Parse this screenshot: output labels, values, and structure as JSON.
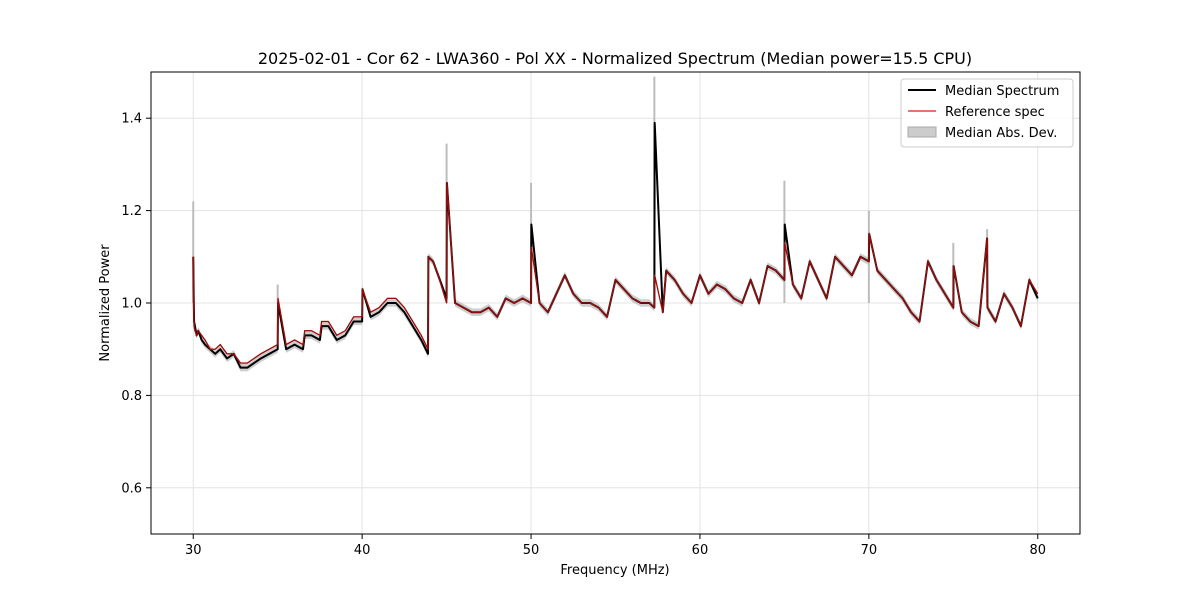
{
  "chart_data": {
    "type": "line",
    "title": "2025-02-01 - Cor 62 - LWA360 - Pol XX - Normalized Spectrum (Median power=15.5 CPU)",
    "xlabel": "Frequency (MHz)",
    "ylabel": "Normalized Power",
    "xlim": [
      27.5,
      82.5
    ],
    "ylim": [
      0.5,
      1.5
    ],
    "xticks": [
      30,
      40,
      50,
      60,
      70,
      80
    ],
    "yticks": [
      0.6,
      0.8,
      1.0,
      1.2,
      1.4
    ],
    "xtick_labels": [
      "30",
      "40",
      "50",
      "60",
      "70",
      "80"
    ],
    "ytick_labels": [
      "0.6",
      "0.8",
      "1.0",
      "1.2",
      "1.4"
    ],
    "grid": true,
    "legend_position": "top-right",
    "legend": [
      "Median Spectrum",
      "Reference spec",
      "Median Abs. Dev."
    ],
    "colors": {
      "median": "#000000",
      "reference": "#e8423b",
      "mad": "#bdbdbd",
      "overlap": "#8b0000"
    },
    "series": [
      {
        "name": "Median Spectrum",
        "x": [
          30.0,
          30.05,
          30.1,
          30.2,
          30.3,
          30.5,
          30.7,
          31.0,
          31.3,
          31.6,
          32.0,
          32.4,
          32.8,
          33.2,
          33.6,
          34.0,
          34.5,
          35.0,
          35.02,
          35.5,
          36.0,
          36.5,
          36.6,
          37.0,
          37.5,
          37.6,
          38.0,
          38.5,
          39.0,
          39.5,
          40.0,
          40.02,
          40.5,
          41.0,
          41.5,
          42.0,
          42.5,
          43.0,
          43.5,
          43.9,
          43.92,
          44.2,
          44.5,
          45.0,
          45.02,
          45.5,
          46.0,
          46.5,
          47.0,
          47.5,
          48.0,
          48.5,
          49.0,
          49.5,
          50.0,
          50.02,
          50.5,
          51.0,
          51.5,
          52.0,
          52.5,
          53.0,
          53.5,
          54.0,
          54.5,
          55.0,
          55.5,
          56.0,
          56.5,
          57.0,
          57.3,
          57.32,
          57.8,
          58.0,
          58.5,
          59.0,
          59.5,
          60.0,
          60.5,
          61.0,
          61.5,
          62.0,
          62.5,
          63.0,
          63.5,
          64.0,
          64.5,
          65.0,
          65.02,
          65.5,
          66.0,
          66.5,
          67.0,
          67.5,
          68.0,
          68.5,
          69.0,
          69.5,
          70.0,
          70.02,
          70.5,
          71.0,
          71.5,
          72.0,
          72.5,
          73.0,
          73.5,
          74.0,
          74.5,
          75.0,
          75.02,
          75.5,
          76.0,
          76.5,
          77.0,
          77.02,
          77.5,
          78.0,
          78.5,
          79.0,
          79.5,
          80.0
        ],
        "y": [
          1.1,
          0.96,
          0.95,
          0.93,
          0.94,
          0.92,
          0.91,
          0.9,
          0.89,
          0.9,
          0.88,
          0.89,
          0.86,
          0.86,
          0.87,
          0.88,
          0.89,
          0.9,
          1.0,
          0.9,
          0.91,
          0.9,
          0.93,
          0.93,
          0.92,
          0.95,
          0.95,
          0.92,
          0.93,
          0.96,
          0.96,
          1.03,
          0.97,
          0.98,
          1.0,
          1.0,
          0.98,
          0.95,
          0.92,
          0.89,
          1.1,
          1.09,
          1.06,
          1.01,
          1.26,
          1.0,
          0.99,
          0.98,
          0.98,
          0.99,
          0.97,
          1.01,
          1.0,
          1.01,
          1.0,
          1.17,
          1.0,
          0.98,
          1.02,
          1.06,
          1.02,
          1.0,
          1.0,
          0.99,
          0.97,
          1.05,
          1.03,
          1.01,
          1.0,
          1.0,
          0.99,
          1.39,
          0.98,
          1.07,
          1.05,
          1.02,
          1.0,
          1.06,
          1.02,
          1.04,
          1.03,
          1.01,
          1.0,
          1.05,
          1.0,
          1.08,
          1.07,
          1.05,
          1.17,
          1.04,
          1.01,
          1.09,
          1.05,
          1.01,
          1.1,
          1.08,
          1.06,
          1.1,
          1.09,
          1.15,
          1.07,
          1.05,
          1.03,
          1.01,
          0.98,
          0.96,
          1.09,
          1.05,
          1.02,
          0.99,
          1.08,
          0.98,
          0.96,
          0.95,
          1.14,
          0.99,
          0.96,
          1.02,
          0.99,
          0.95,
          1.05,
          1.01
        ]
      },
      {
        "name": "Reference spec",
        "x": [
          30.0,
          30.05,
          30.1,
          30.2,
          30.3,
          30.5,
          30.7,
          31.0,
          31.3,
          31.6,
          32.0,
          32.4,
          32.8,
          33.2,
          33.6,
          34.0,
          34.5,
          35.0,
          35.02,
          35.5,
          36.0,
          36.5,
          36.6,
          37.0,
          37.5,
          37.6,
          38.0,
          38.5,
          39.0,
          39.5,
          40.0,
          40.02,
          40.5,
          41.0,
          41.5,
          42.0,
          42.5,
          43.0,
          43.5,
          43.9,
          43.92,
          44.2,
          44.5,
          45.0,
          45.02,
          45.5,
          46.0,
          46.5,
          47.0,
          47.5,
          48.0,
          48.5,
          49.0,
          49.5,
          50.0,
          50.02,
          50.5,
          51.0,
          51.5,
          52.0,
          52.5,
          53.0,
          53.5,
          54.0,
          54.5,
          55.0,
          55.5,
          56.0,
          56.5,
          57.0,
          57.3,
          57.32,
          57.8,
          58.0,
          58.5,
          59.0,
          59.5,
          60.0,
          60.5,
          61.0,
          61.5,
          62.0,
          62.5,
          63.0,
          63.5,
          64.0,
          64.5,
          65.0,
          65.02,
          65.5,
          66.0,
          66.5,
          67.0,
          67.5,
          68.0,
          68.5,
          69.0,
          69.5,
          70.0,
          70.02,
          70.5,
          71.0,
          71.5,
          72.0,
          72.5,
          73.0,
          73.5,
          74.0,
          74.5,
          75.0,
          75.02,
          75.5,
          76.0,
          76.5,
          77.0,
          77.02,
          77.5,
          78.0,
          78.5,
          79.0,
          79.5,
          80.0
        ],
        "y": [
          1.1,
          0.95,
          0.94,
          0.93,
          0.94,
          0.93,
          0.92,
          0.9,
          0.9,
          0.91,
          0.89,
          0.89,
          0.87,
          0.87,
          0.88,
          0.89,
          0.9,
          0.91,
          1.01,
          0.91,
          0.92,
          0.91,
          0.94,
          0.94,
          0.93,
          0.96,
          0.96,
          0.93,
          0.94,
          0.97,
          0.97,
          1.03,
          0.98,
          0.99,
          1.01,
          1.01,
          0.99,
          0.96,
          0.93,
          0.9,
          1.1,
          1.09,
          1.06,
          1.0,
          1.26,
          1.0,
          0.99,
          0.98,
          0.98,
          0.99,
          0.97,
          1.01,
          1.0,
          1.01,
          1.0,
          1.12,
          1.0,
          0.98,
          1.02,
          1.06,
          1.02,
          1.0,
          1.0,
          0.99,
          0.97,
          1.05,
          1.03,
          1.01,
          1.0,
          1.0,
          0.99,
          1.06,
          0.98,
          1.07,
          1.05,
          1.02,
          1.0,
          1.06,
          1.02,
          1.04,
          1.03,
          1.01,
          1.0,
          1.05,
          1.0,
          1.08,
          1.07,
          1.05,
          1.13,
          1.04,
          1.01,
          1.09,
          1.05,
          1.01,
          1.1,
          1.08,
          1.06,
          1.1,
          1.09,
          1.15,
          1.07,
          1.05,
          1.03,
          1.01,
          0.98,
          0.96,
          1.09,
          1.05,
          1.02,
          0.99,
          1.08,
          0.98,
          0.96,
          0.95,
          1.14,
          0.99,
          0.96,
          1.02,
          0.99,
          0.95,
          1.05,
          1.02
        ]
      }
    ],
    "mad_halfwidth": 0.008,
    "mad_spikes": [
      {
        "x": 30.0,
        "top": 1.22
      },
      {
        "x": 35.0,
        "top": 1.04
      },
      {
        "x": 45.0,
        "top": 1.345
      },
      {
        "x": 50.0,
        "top": 1.26
      },
      {
        "x": 57.3,
        "top": 1.49
      },
      {
        "x": 65.0,
        "top": 1.265
      },
      {
        "x": 70.0,
        "top": 1.2
      },
      {
        "x": 75.0,
        "top": 1.13
      },
      {
        "x": 77.0,
        "top": 1.16
      }
    ]
  }
}
